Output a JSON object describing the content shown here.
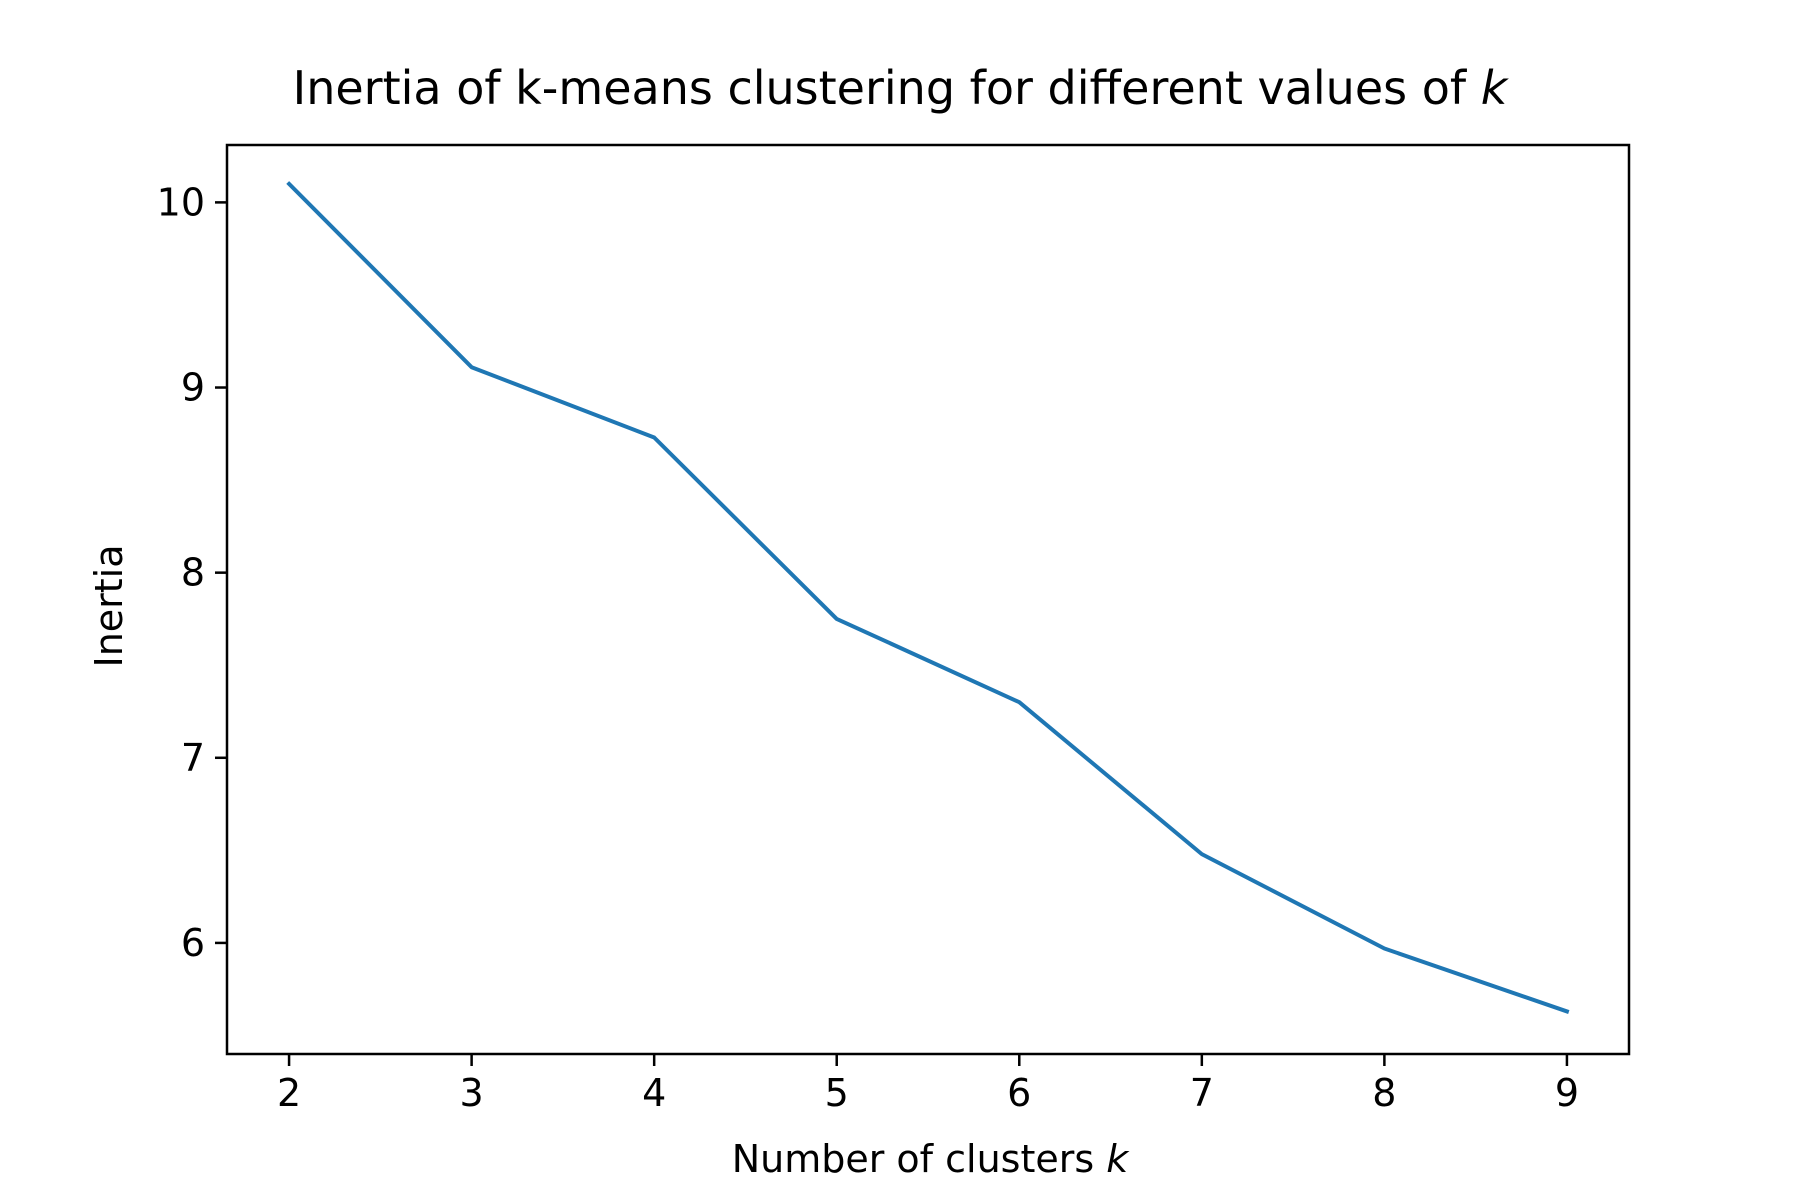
{
  "chart_data": {
    "type": "line",
    "title": "Inertia of k-means clustering for different values of",
    "title_var": "k",
    "xlabel": "Number of clusters",
    "xlabel_var": "k",
    "ylabel": "Inertia",
    "x": [
      2,
      3,
      4,
      5,
      6,
      7,
      8,
      9
    ],
    "series": [
      {
        "values": [
          10.1,
          9.11,
          8.73,
          7.75,
          7.3,
          6.48,
          5.97,
          5.63
        ],
        "color": "#1f77b4"
      }
    ],
    "xticks": [
      "2",
      "3",
      "4",
      "5",
      "6",
      "7",
      "8",
      "9"
    ],
    "yticks": [
      "6",
      "7",
      "8",
      "9",
      "10"
    ],
    "xlim": [
      1.66,
      9.34
    ],
    "ylim": [
      5.4,
      10.31
    ],
    "grid": false,
    "legend": "none"
  }
}
